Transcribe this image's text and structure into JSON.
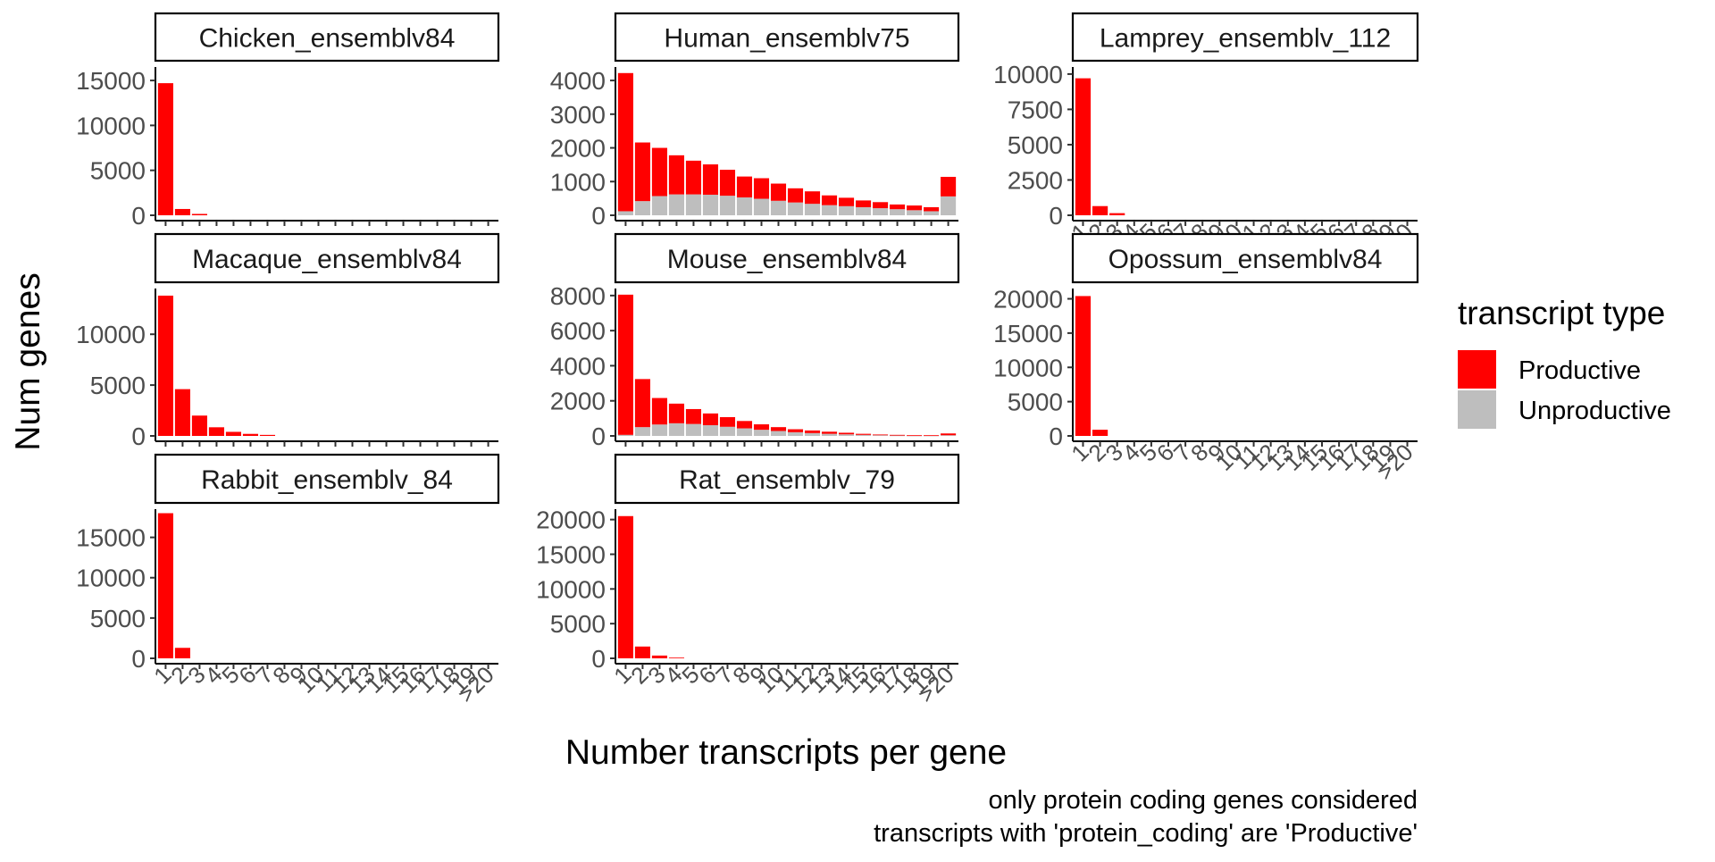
{
  "figure": {
    "xlabel": "Number transcripts per gene",
    "ylabel": "Num genes",
    "caption_lines": [
      "only protein coding genes considered",
      "transcripts with 'protein_coding' are 'Productive'"
    ]
  },
  "legend": {
    "title": "transcript type",
    "placement": "right",
    "items": [
      {
        "label": "Productive",
        "color": "#ff0000"
      },
      {
        "label": "Unproductive",
        "color": "#bebebe"
      }
    ]
  },
  "chart_data": {
    "type": "bar",
    "stacked": true,
    "categories": [
      "1",
      "2",
      "3",
      "4",
      "5",
      "6",
      "7",
      "8",
      "9",
      "10",
      "11",
      "12",
      "13",
      "14",
      "15",
      "16",
      "17",
      "18",
      "19",
      ">20"
    ],
    "series_names": [
      "Productive",
      "Unproductive"
    ],
    "panels": [
      {
        "title": "Chicken_ensemblv84",
        "ylim": [
          0,
          16500
        ],
        "yticks": [
          0,
          5000,
          10000,
          15000
        ],
        "show_x_axis": false,
        "series": [
          {
            "name": "Unproductive",
            "values": [
              0,
              0,
              0,
              0,
              0,
              0,
              0,
              0,
              0,
              0,
              0,
              0,
              0,
              0,
              0,
              0,
              0,
              0,
              0,
              0
            ]
          },
          {
            "name": "Productive",
            "values": [
              14700,
              700,
              150,
              0,
              0,
              0,
              0,
              0,
              0,
              0,
              0,
              0,
              0,
              0,
              0,
              0,
              0,
              0,
              0,
              0
            ]
          }
        ]
      },
      {
        "title": "Human_ensemblv75",
        "ylim": [
          0,
          4400
        ],
        "yticks": [
          0,
          1000,
          2000,
          3000,
          4000
        ],
        "show_x_axis": false,
        "series": [
          {
            "name": "Unproductive",
            "values": [
              120,
              420,
              570,
              620,
              620,
              610,
              580,
              530,
              490,
              430,
              380,
              340,
              300,
              270,
              240,
              210,
              180,
              150,
              120,
              560
            ]
          },
          {
            "name": "Productive",
            "values": [
              4100,
              1740,
              1430,
              1160,
              1000,
              900,
              770,
              620,
              610,
              510,
              420,
              370,
              290,
              250,
              200,
              180,
              140,
              140,
              120,
              580
            ]
          }
        ]
      },
      {
        "title": "Lamprey_ensemblv_112",
        "ylim": [
          0,
          10500
        ],
        "yticks": [
          0,
          2500,
          5000,
          7500,
          10000
        ],
        "show_x_axis": true,
        "series": [
          {
            "name": "Unproductive",
            "values": [
              0,
              0,
              0,
              0,
              0,
              0,
              0,
              0,
              0,
              0,
              0,
              0,
              0,
              0,
              0,
              0,
              0,
              0,
              0,
              0
            ]
          },
          {
            "name": "Productive",
            "values": [
              9700,
              650,
              150,
              0,
              0,
              0,
              0,
              0,
              0,
              0,
              0,
              0,
              0,
              0,
              0,
              0,
              0,
              0,
              0,
              0
            ]
          }
        ]
      },
      {
        "title": "Macaque_ensemblv84",
        "ylim": [
          0,
          14500
        ],
        "yticks": [
          0,
          5000,
          10000
        ],
        "show_x_axis": false,
        "series": [
          {
            "name": "Unproductive",
            "values": [
              0,
              0,
              0,
              0,
              0,
              0,
              0,
              0,
              0,
              0,
              0,
              0,
              0,
              0,
              0,
              0,
              0,
              0,
              0,
              0
            ]
          },
          {
            "name": "Productive",
            "values": [
              13800,
              4600,
              2000,
              850,
              400,
              200,
              100,
              0,
              0,
              0,
              0,
              0,
              0,
              0,
              0,
              0,
              0,
              0,
              0,
              0
            ]
          }
        ]
      },
      {
        "title": "Mouse_ensemblv84",
        "ylim": [
          0,
          8400
        ],
        "yticks": [
          0,
          2000,
          4000,
          6000,
          8000
        ],
        "show_x_axis": false,
        "series": [
          {
            "name": "Unproductive",
            "values": [
              60,
              500,
              650,
              720,
              680,
              610,
              520,
              430,
              350,
              280,
              210,
              160,
              120,
              90,
              60,
              40,
              30,
              20,
              20,
              40
            ]
          },
          {
            "name": "Productive",
            "values": [
              7990,
              2740,
              1510,
              1120,
              850,
              670,
              550,
              420,
              310,
              220,
              170,
              150,
              120,
              90,
              60,
              40,
              30,
              20,
              20,
              100
            ]
          }
        ]
      },
      {
        "title": "Opossum_ensemblv84",
        "ylim": [
          0,
          21500
        ],
        "yticks": [
          0,
          5000,
          10000,
          15000,
          20000
        ],
        "show_x_axis": true,
        "series": [
          {
            "name": "Unproductive",
            "values": [
              0,
              0,
              0,
              0,
              0,
              0,
              0,
              0,
              0,
              0,
              0,
              0,
              0,
              0,
              0,
              0,
              0,
              0,
              0,
              0
            ]
          },
          {
            "name": "Productive",
            "values": [
              20400,
              900,
              0,
              0,
              0,
              0,
              0,
              0,
              0,
              0,
              0,
              0,
              0,
              0,
              0,
              0,
              0,
              0,
              0,
              0
            ]
          }
        ]
      },
      {
        "title": "Rabbit_ensemblv_84",
        "ylim": [
          0,
          18500
        ],
        "yticks": [
          0,
          5000,
          10000,
          15000
        ],
        "show_x_axis": true,
        "series": [
          {
            "name": "Unproductive",
            "values": [
              0,
              0,
              0,
              0,
              0,
              0,
              0,
              0,
              0,
              0,
              0,
              0,
              0,
              0,
              0,
              0,
              0,
              0,
              0,
              0
            ]
          },
          {
            "name": "Productive",
            "values": [
              18000,
              1300,
              0,
              0,
              0,
              0,
              0,
              0,
              0,
              0,
              0,
              0,
              0,
              0,
              0,
              0,
              0,
              0,
              0,
              0
            ]
          }
        ]
      },
      {
        "title": "Rat_ensemblv_79",
        "ylim": [
          0,
          21500
        ],
        "yticks": [
          0,
          5000,
          10000,
          15000,
          20000
        ],
        "show_x_axis": true,
        "series": [
          {
            "name": "Unproductive",
            "values": [
              0,
              0,
              0,
              0,
              0,
              0,
              0,
              0,
              0,
              0,
              0,
              0,
              0,
              0,
              0,
              0,
              0,
              0,
              0,
              0
            ]
          },
          {
            "name": "Productive",
            "values": [
              20500,
              1700,
              400,
              100,
              0,
              0,
              0,
              0,
              0,
              0,
              0,
              0,
              0,
              0,
              0,
              0,
              0,
              0,
              0,
              0
            ]
          }
        ]
      }
    ]
  }
}
